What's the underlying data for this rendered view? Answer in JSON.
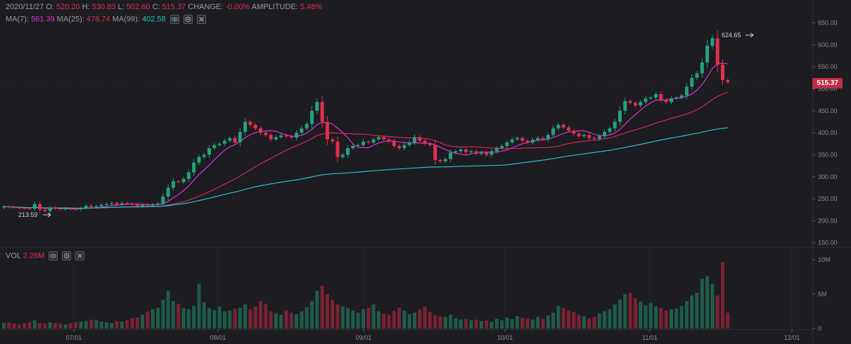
{
  "header": {
    "date": "2020/11/27",
    "open_label": "O:",
    "open": "520.20",
    "high_label": "H:",
    "high": "530.83",
    "low_label": "L:",
    "low": "502.60",
    "close_label": "C:",
    "close": "515.37",
    "change_label": "CHANGE:",
    "change": "-0.00%",
    "amplitude_label": "AMPLITUDE:",
    "amplitude": "5.48%"
  },
  "ma_legend": {
    "ma7_label": "MA(7):",
    "ma7": "561.39",
    "ma25_label": "MA(25):",
    "ma25": "478.74",
    "ma99_label": "MA(99):",
    "ma99": "402.58"
  },
  "vol_legend": {
    "label": "VOL",
    "value": "2.26M"
  },
  "last_price": "515.37",
  "colors": {
    "up": "#26a17c",
    "down": "#e0314f",
    "ma7": "#e02fd8",
    "ma25": "#d0285a",
    "ma99": "#28c1c1",
    "bg": "#1c1c21"
  },
  "icons": [
    "eye-icon",
    "settings-icon",
    "close-icon"
  ],
  "chart_data": {
    "type": "candlestick",
    "x_ticks": [
      "07/01",
      "08/01",
      "09/01",
      "10/01",
      "11/01",
      "12/01"
    ],
    "y_ticks": [
      "650.00",
      "600.00",
      "550.00",
      "500.00",
      "450.00",
      "400.00",
      "350.00",
      "300.00",
      "250.00",
      "200.00",
      "150.00"
    ],
    "ylim": [
      140,
      670
    ],
    "vol_ticks": [
      "10M",
      "5M",
      "0"
    ],
    "vol_ylim": [
      0,
      11
    ],
    "annotations": {
      "high": "624.65",
      "low": "213.59"
    },
    "close": [
      232,
      231,
      230,
      229,
      228,
      227,
      238,
      225,
      222,
      230,
      228,
      226,
      228,
      227,
      226,
      229,
      234,
      231,
      233,
      236,
      238,
      240,
      237,
      240,
      239,
      237,
      233,
      236,
      234,
      237,
      239,
      255,
      275,
      290,
      288,
      295,
      310,
      332,
      345,
      350,
      365,
      372,
      375,
      382,
      388,
      378,
      402,
      425,
      418,
      410,
      400,
      395,
      385,
      390,
      394,
      392,
      389,
      400,
      410,
      420,
      450,
      470,
      425,
      385,
      380,
      345,
      350,
      365,
      370,
      372,
      380,
      378,
      385,
      390,
      385,
      380,
      370,
      365,
      372,
      378,
      390,
      382,
      375,
      372,
      338,
      335,
      340,
      355,
      358,
      362,
      356,
      358,
      352,
      355,
      350,
      358,
      365,
      370,
      378,
      385,
      388,
      382,
      378,
      384,
      388,
      385,
      395,
      410,
      418,
      412,
      405,
      398,
      392,
      395,
      388,
      386,
      392,
      402,
      410,
      425,
      450,
      472,
      468,
      462,
      470,
      478,
      480,
      488,
      475,
      470,
      478,
      480,
      485,
      505,
      525,
      535,
      560,
      598,
      615,
      555,
      520,
      515
    ],
    "volume_m": [
      0.8,
      0.9,
      0.7,
      0.6,
      0.8,
      0.9,
      1.2,
      0.8,
      0.7,
      0.9,
      0.8,
      0.7,
      0.6,
      0.8,
      0.9,
      1.0,
      1.1,
      1.3,
      1.2,
      1.0,
      0.9,
      0.8,
      1.1,
      1.0,
      1.2,
      1.5,
      1.6,
      2.0,
      2.5,
      2.8,
      3.0,
      4.2,
      5.5,
      4.0,
      3.6,
      3.0,
      2.8,
      3.3,
      6.5,
      3.8,
      3.0,
      2.7,
      3.2,
      2.5,
      2.6,
      2.9,
      3.0,
      3.5,
      2.8,
      3.2,
      4.0,
      3.6,
      2.5,
      2.2,
      2.0,
      2.6,
      2.3,
      2.1,
      2.5,
      3.1,
      4.0,
      5.5,
      6.2,
      5.0,
      4.2,
      3.5,
      3.2,
      3.0,
      2.6,
      2.3,
      2.8,
      3.0,
      3.5,
      2.5,
      2.2,
      2.0,
      2.6,
      3.0,
      2.6,
      2.1,
      2.3,
      2.8,
      3.2,
      2.4,
      2.0,
      1.8,
      1.7,
      2.0,
      1.5,
      1.3,
      1.4,
      1.2,
      1.3,
      1.1,
      1.2,
      1.0,
      1.4,
      1.2,
      1.6,
      1.4,
      1.8,
      1.6,
      1.5,
      1.3,
      1.7,
      1.4,
      1.9,
      2.3,
      3.3,
      3.0,
      2.6,
      2.4,
      2.0,
      1.8,
      1.5,
      1.7,
      2.2,
      2.5,
      2.8,
      3.5,
      4.2,
      5.0,
      5.2,
      4.4,
      3.9,
      3.4,
      3.7,
      3.2,
      3.0,
      2.6,
      2.8,
      2.9,
      3.3,
      4.0,
      4.8,
      5.2,
      7.2,
      7.6,
      6.5,
      4.8,
      9.6,
      2.3
    ]
  }
}
